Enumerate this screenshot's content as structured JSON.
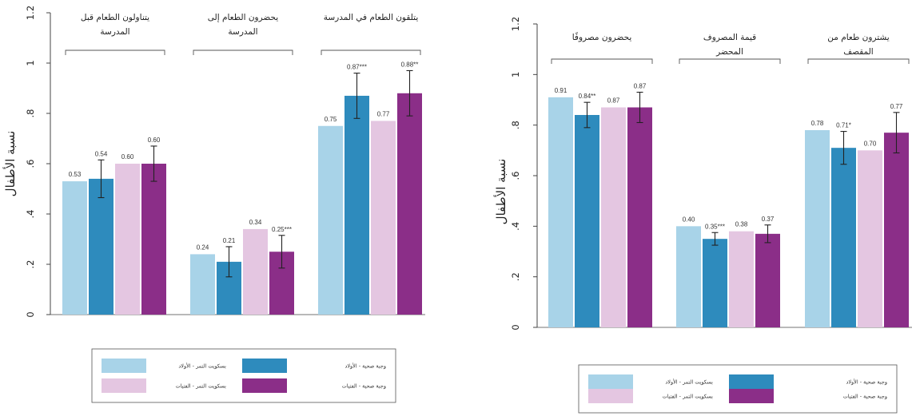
{
  "chart_data": [
    {
      "type": "bar",
      "ylabel": "نسبة الأطفال",
      "ylim": [
        0,
        1.2
      ],
      "yticks": [
        "0",
        ".2",
        ".4",
        ".6",
        ".8",
        "1",
        "1.2"
      ],
      "groups": [
        {
          "title": [
            "يتناولون الطعام قبل",
            "المدرسة"
          ],
          "values": [
            0.53,
            0.54,
            0.6,
            0.6
          ],
          "labels": [
            "0.53",
            "0.54",
            "0.60",
            "0.60"
          ],
          "errors": [
            null,
            0.075,
            null,
            0.07
          ]
        },
        {
          "title": [
            "يحضرون الطعام إلى",
            "المدرسة"
          ],
          "values": [
            0.24,
            0.21,
            0.34,
            0.25
          ],
          "labels": [
            "0.24",
            "0.21",
            "0.34",
            "0.25***"
          ],
          "errors": [
            null,
            0.06,
            null,
            0.065
          ]
        },
        {
          "title": [
            "يتلقون الطعام في المدرسة"
          ],
          "values": [
            0.75,
            0.87,
            0.77,
            0.88
          ],
          "labels": [
            "0.75",
            "0.87***",
            "0.77",
            "0.88**"
          ],
          "errors": [
            null,
            0.09,
            null,
            0.09
          ]
        }
      ]
    },
    {
      "type": "bar",
      "ylabel": "نسبة الأطفال",
      "ylim": [
        0,
        1.2
      ],
      "yticks": [
        "0",
        ".2",
        ".4",
        ".6",
        ".8",
        "1",
        "1.2"
      ],
      "groups": [
        {
          "title": [
            "يحضرون مصروفًا"
          ],
          "values": [
            0.91,
            0.84,
            0.87,
            0.87
          ],
          "labels": [
            "0.91",
            "0.84**",
            "0.87",
            "0.87"
          ],
          "errors": [
            null,
            0.05,
            null,
            0.06
          ]
        },
        {
          "title": [
            "قيمة المصروف",
            "المحضر"
          ],
          "values": [
            0.4,
            0.35,
            0.38,
            0.37
          ],
          "labels": [
            "0.40",
            "0.35***",
            "0.38",
            "0.37"
          ],
          "errors": [
            null,
            0.025,
            null,
            0.035
          ]
        },
        {
          "title": [
            "يشترون طعام من",
            "المقصف"
          ],
          "values": [
            0.78,
            0.71,
            0.7,
            0.77
          ],
          "labels": [
            "0.78",
            "0.71*",
            "0.70",
            "0.77"
          ],
          "errors": [
            null,
            0.065,
            null,
            0.08
          ]
        }
      ]
    }
  ],
  "series": [
    {
      "name": "بسكويت التمر - الأولاد",
      "color": "#a8d3e8"
    },
    {
      "name": "وجبة صحية - الأولاد",
      "color": "#2e8bbd"
    },
    {
      "name": "بسكويت التمر - الفتيات",
      "color": "#e4c6e1"
    },
    {
      "name": "وجبة صحية - الفتيات",
      "color": "#8b2e88"
    }
  ]
}
